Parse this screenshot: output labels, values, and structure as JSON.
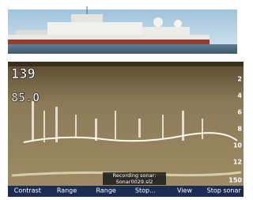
{
  "sonar": {
    "depth": "139",
    "temperature": "85.0",
    "scale": [
      "2",
      "4",
      "6",
      "8",
      "10",
      "12"
    ],
    "range_end": "150",
    "status": [
      "Recording sonar:",
      "Sonar0029.sl2"
    ],
    "softkeys": [
      "Contrast",
      "Range",
      "Range",
      "Stop...",
      "View",
      "Stop sonar"
    ]
  }
}
